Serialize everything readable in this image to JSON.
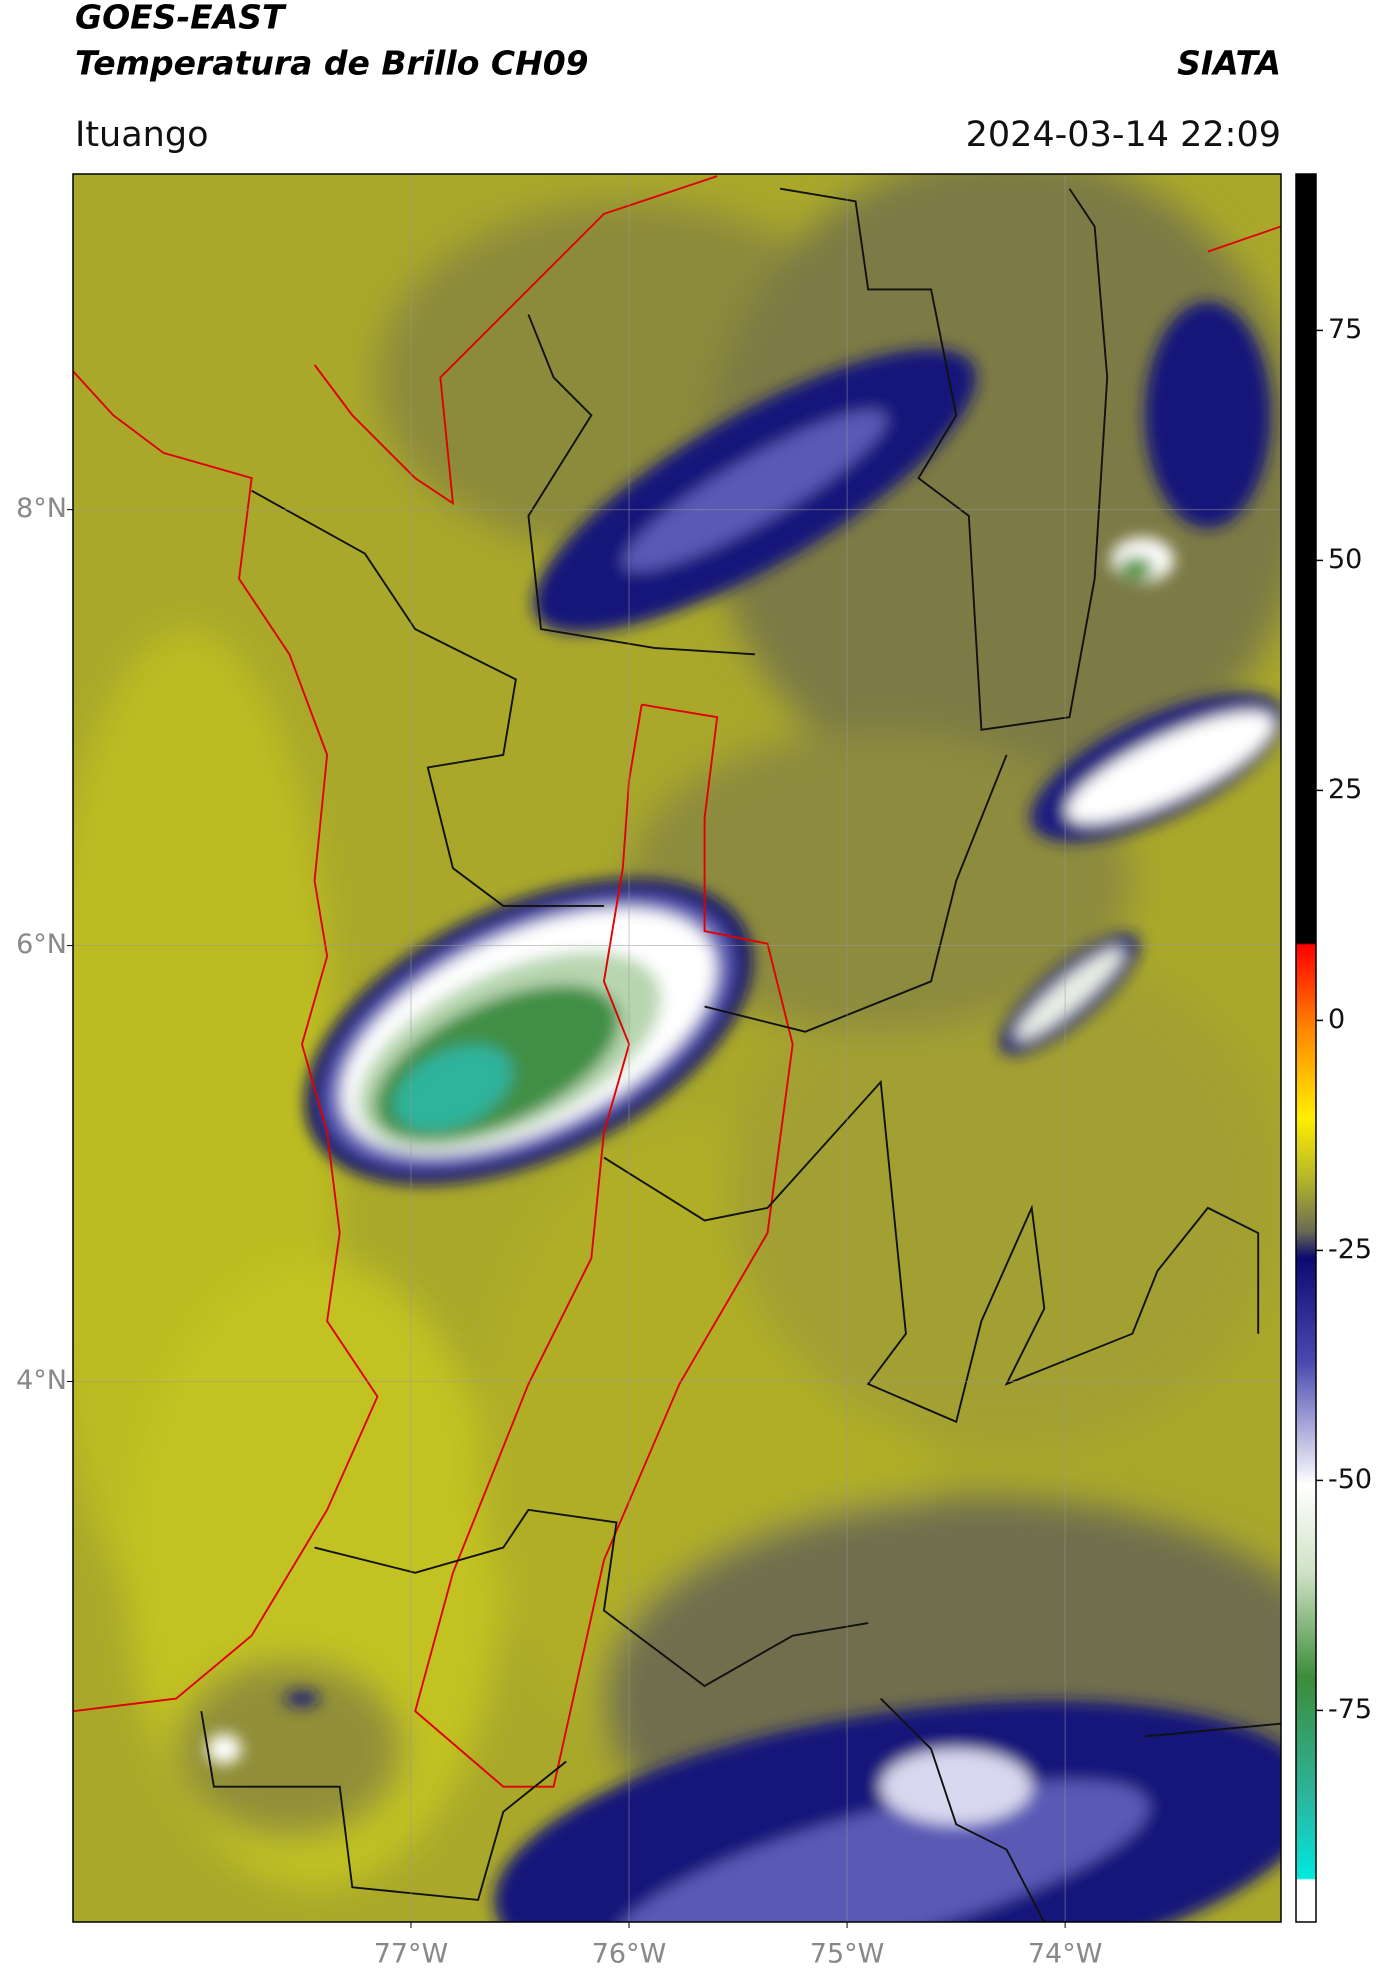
{
  "header": {
    "title": "GOES-EAST",
    "subtitle": "Temperatura de Brillo CH09",
    "brand": "SIATA",
    "location": "Ituango",
    "datetime": "2024-03-14 22:09"
  },
  "map": {
    "type": "map",
    "xlim": [
      -78.55,
      -73.01
    ],
    "ylim": [
      1.52,
      9.54
    ],
    "xticks": [
      {
        "value": -77,
        "label": "77°W"
      },
      {
        "value": -76,
        "label": "76°W"
      },
      {
        "value": -75,
        "label": "75°W"
      },
      {
        "value": -74,
        "label": "74°W"
      }
    ],
    "yticks": [
      {
        "value": 8,
        "label": "8°N"
      },
      {
        "value": 6,
        "label": "6°N"
      },
      {
        "value": 4,
        "label": "4°N"
      }
    ],
    "grid": true
  },
  "colorbar": {
    "lim": [
      -98,
      92
    ],
    "ticks": [
      75,
      50,
      25,
      0,
      -25,
      -50,
      -75
    ]
  }
}
